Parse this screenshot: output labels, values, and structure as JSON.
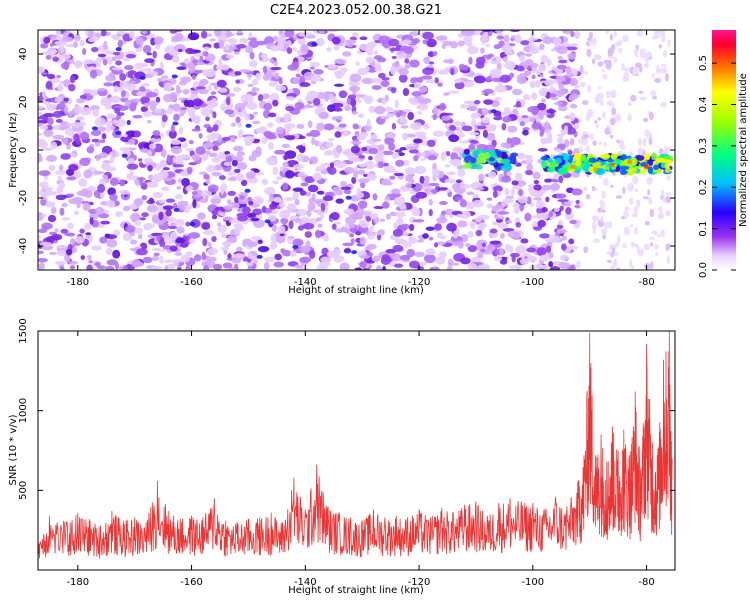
{
  "title": "C2E4.2023.052.00.38.G21",
  "chart_data": [
    {
      "type": "heatmap",
      "xlabel": "Height of straight line (km)",
      "ylabel": "Frequency (Hz)",
      "xlim": [
        -187,
        -75
      ],
      "ylim": [
        -50,
        50
      ],
      "xticks": [
        -180,
        -160,
        -140,
        -120,
        -100,
        -80
      ],
      "yticks": [
        -40,
        -20,
        0,
        20,
        40
      ],
      "grid": false,
      "colorbar": {
        "label": "Normalized spectral amplitude",
        "range": [
          0,
          0.58
        ],
        "ticks": [
          "0.0",
          "0.1",
          "0.2",
          "0.3",
          "0.4",
          "0.5"
        ],
        "colormap": [
          "#ffffff",
          "#8a2be2",
          "#0000ff",
          "#00ffff",
          "#00ff00",
          "#ffff00",
          "#ff8000",
          "#ff0000",
          "#ff1493"
        ]
      },
      "features": [
        {
          "x_range": [
            -187,
            -92
          ],
          "y_range": [
            -50,
            50
          ],
          "description": "broadband noise, purple speckle"
        },
        {
          "x_range": [
            -112,
            -103
          ],
          "y_center": -4,
          "peak": 0.25
        },
        {
          "x_range": [
            -98,
            -76
          ],
          "y_center": -6,
          "peak": 0.5
        }
      ]
    },
    {
      "type": "line",
      "xlabel": "Height of straight line (km)",
      "ylabel": "SNR (10 * v/v)",
      "xlim": [
        -187,
        -75
      ],
      "ylim": [
        0,
        1500
      ],
      "xticks": [
        -180,
        -160,
        -140,
        -120,
        -100,
        -80
      ],
      "yticks": [
        500,
        1000,
        1500
      ],
      "grid": false,
      "series": [
        {
          "color": "#ee3333",
          "x": [
            -187,
            -185,
            -182,
            -180,
            -178,
            -176,
            -174,
            -172,
            -170,
            -168,
            -166,
            -164,
            -162,
            -160,
            -158,
            -156,
            -154,
            -152,
            -150,
            -148,
            -146,
            -144,
            -142,
            -140,
            -138,
            -136,
            -134,
            -132,
            -130,
            -128,
            -126,
            -124,
            -122,
            -120,
            -118,
            -116,
            -114,
            -112,
            -110,
            -108,
            -106,
            -104,
            -102,
            -100,
            -98,
            -96,
            -94,
            -92,
            -91,
            -90,
            -89,
            -88,
            -87,
            -86,
            -85,
            -84,
            -83,
            -82,
            -81,
            -80,
            -79,
            -78,
            -77,
            -76,
            -75.5
          ],
          "y": [
            220,
            340,
            300,
            360,
            320,
            280,
            370,
            310,
            330,
            300,
            560,
            370,
            320,
            340,
            330,
            450,
            310,
            300,
            320,
            330,
            360,
            300,
            580,
            380,
            660,
            400,
            360,
            330,
            310,
            380,
            330,
            340,
            330,
            380,
            330,
            390,
            360,
            410,
            430,
            340,
            420,
            450,
            430,
            420,
            380,
            460,
            400,
            560,
            720,
            1490,
            720,
            850,
            680,
            900,
            750,
            880,
            720,
            1120,
            640,
            1420,
            800,
            760,
            1320,
            1500,
            700
          ]
        }
      ]
    }
  ]
}
